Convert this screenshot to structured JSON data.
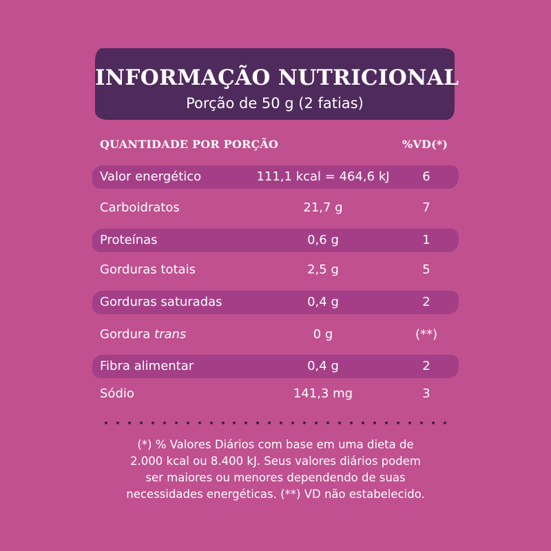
{
  "header": {
    "title": "INFORMAÇÃO NUTRICIONAL",
    "subtitle": "Porção de 50 g (2 fatias)"
  },
  "columns": {
    "quantity": "QUANTIDADE POR PORÇÃO",
    "vd": "%VD(*)"
  },
  "rows": [
    {
      "name": "Valor energético",
      "amount": "111,1 kcal = 464,6 kJ",
      "vd": "6"
    },
    {
      "name": "Carboidratos",
      "amount": "21,7 g",
      "vd": "7"
    },
    {
      "name": "Proteínas",
      "amount": "0,6 g",
      "vd": "1"
    },
    {
      "name": "Gorduras totais",
      "amount": "2,5 g",
      "vd": "5"
    },
    {
      "name": "Gorduras saturadas",
      "amount": "0,4 g",
      "vd": "2"
    },
    {
      "name": "Gordura",
      "name_italic": "trans",
      "amount": "0 g",
      "vd": "(**)"
    },
    {
      "name": "Fibra alimentar",
      "amount": "0,4 g",
      "vd": "2"
    },
    {
      "name": "Sódio",
      "amount": "141,3 mg",
      "vd": "3"
    }
  ],
  "footnote": {
    "line1": "(*) % Valores Diários com base em uma dieta de",
    "line2": "2.000 kcal ou 8.400 kJ. Seus valores diários podem",
    "line3": "ser maiores ou menores dependendo de suas",
    "line4": "necessidades energéticas. (**) VD não estabelecido."
  },
  "colors": {
    "background": "#c0508f",
    "header_band": "#4f2a5c",
    "row_band": "#a43f87",
    "text": "#ffffff"
  }
}
